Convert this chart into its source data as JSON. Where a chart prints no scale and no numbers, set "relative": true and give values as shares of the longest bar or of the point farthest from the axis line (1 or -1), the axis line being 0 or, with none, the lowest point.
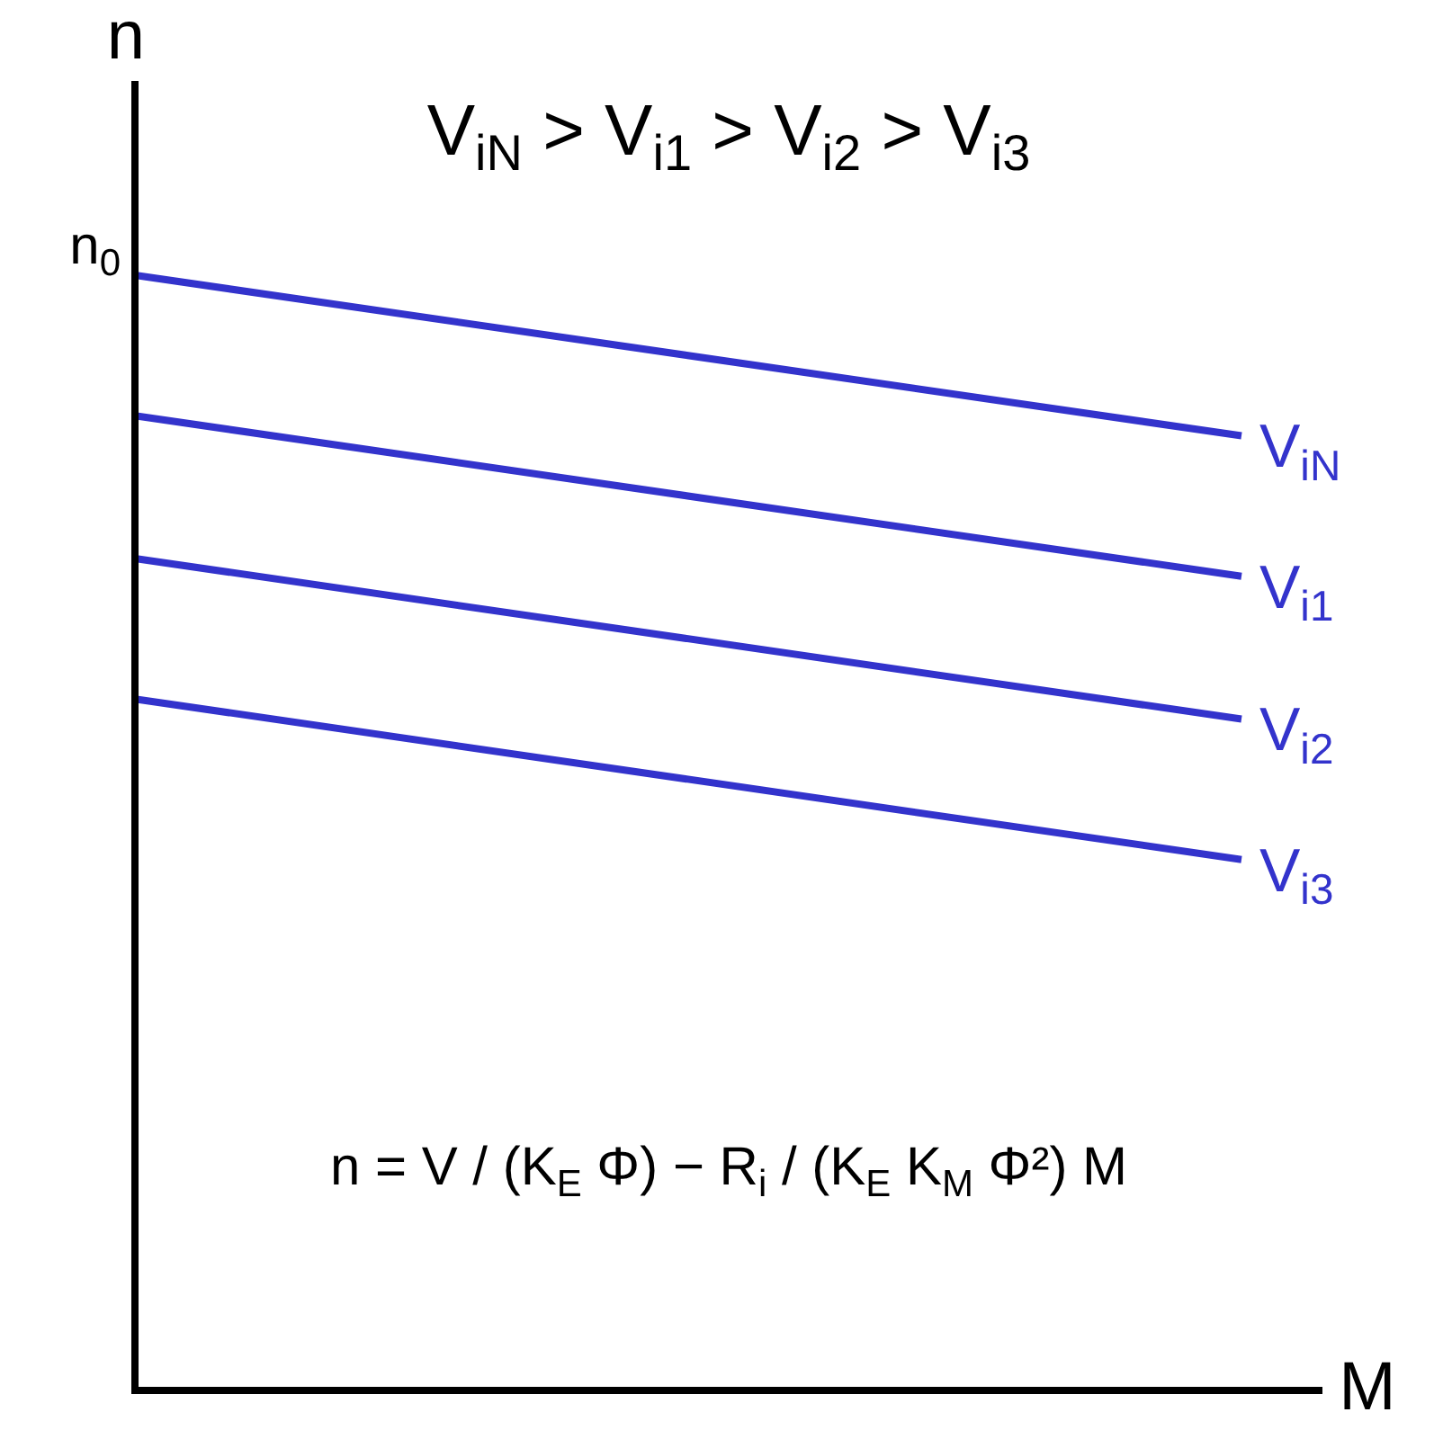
{
  "chart_data": {
    "type": "line",
    "relative": true,
    "title": "V$_{iN}$ > V$_{i1}$ > V$_{i2}$ > V$_{i3}$",
    "xlabel": "M",
    "ylabel": "n",
    "categories": [
      null,
      null
    ],
    "series": [
      {
        "name": "V$_{iN}$",
        "color": "#3333cc",
        "values": [
          1,
          0.856
        ]
      },
      {
        "name": "V$_{i1}$",
        "color": "#3333cc",
        "values": [
          0.874,
          0.73
        ]
      },
      {
        "name": "V$_{i2}$",
        "color": "#3333cc",
        "values": [
          0.746,
          0.602
        ]
      },
      {
        "name": "V$_{i3}$",
        "color": "#3333cc",
        "values": [
          0.62,
          0.476
        ]
      }
    ],
    "annotations": [
      "n$_{0}$",
      "n = V / (K$_{E}$ Φ) − R$_{i}$ / (K$_{E}$ K$_{M}$ Φ²) M"
    ],
    "legend": false,
    "marker": "none",
    "line_style": "solid"
  }
}
